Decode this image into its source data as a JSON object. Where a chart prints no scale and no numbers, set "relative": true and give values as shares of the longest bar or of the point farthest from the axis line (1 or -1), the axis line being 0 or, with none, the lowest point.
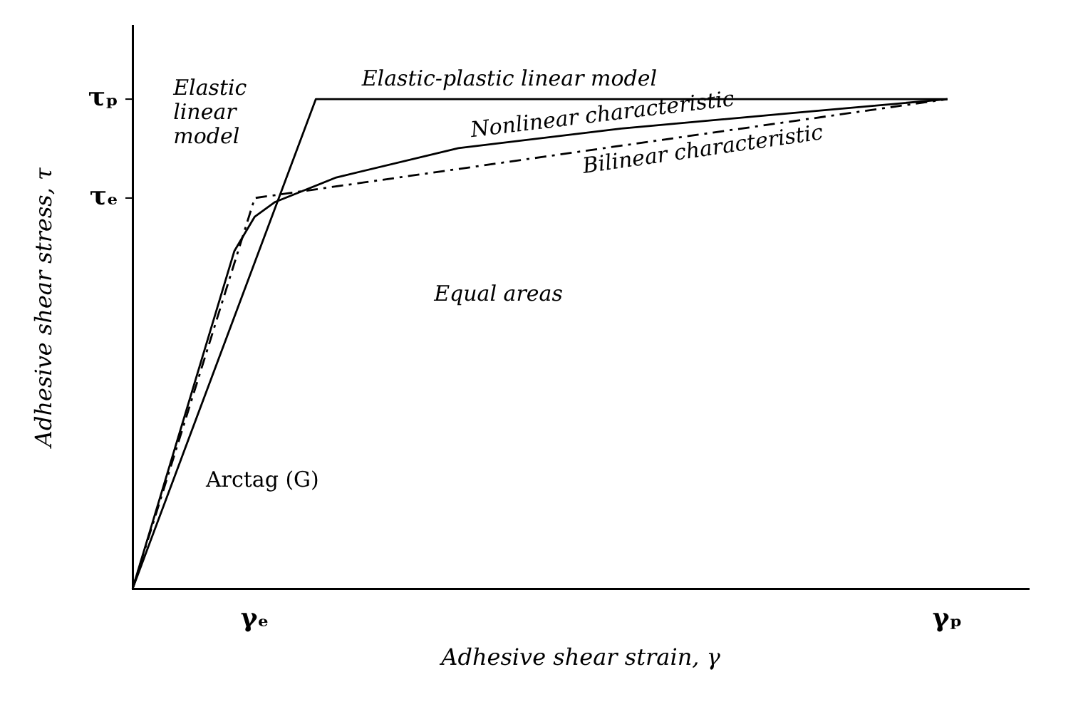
{
  "chart_data": {
    "type": "line",
    "relative": true,
    "xlabel": "Adhesive shear strain, γ",
    "ylabel": "Adhesive shear stress, τ",
    "grid": false,
    "legend": false,
    "marker": "none",
    "categories": [
      null,
      null,
      null,
      null,
      null,
      null,
      "γₑ",
      null,
      null,
      null,
      null,
      null,
      null,
      null,
      null,
      null,
      null,
      null,
      null,
      null,
      null,
      null,
      null,
      null,
      null,
      null,
      null,
      null,
      null,
      null,
      null,
      null,
      null,
      null,
      null,
      null,
      null,
      null,
      null,
      null,
      "γₚ",
      null,
      null,
      null,
      null
    ],
    "series": [
      {
        "name": "Elastic-plastic linear model",
        "color": "#000000",
        "values": [
          0,
          null,
          null,
          null,
          null,
          null,
          null,
          null,
          null,
          1,
          null,
          null,
          null,
          null,
          null,
          null,
          null,
          null,
          null,
          null,
          null,
          null,
          null,
          null,
          null,
          null,
          null,
          null,
          null,
          null,
          null,
          null,
          null,
          null,
          null,
          null,
          null,
          null,
          null,
          null,
          1,
          null,
          null,
          null,
          null
        ]
      },
      {
        "name": "Nonlinear characteristic",
        "color": "#000000",
        "values": [
          0,
          null,
          null,
          null,
          null,
          0.69,
          0.76,
          0.79,
          null,
          null,
          0.84,
          null,
          null,
          null,
          null,
          null,
          0.9,
          null,
          null,
          null,
          null,
          null,
          null,
          null,
          0.94,
          null,
          null,
          null,
          null,
          null,
          null,
          null,
          0.97,
          null,
          null,
          null,
          null,
          null,
          null,
          null,
          1,
          null,
          null,
          null,
          null
        ]
      },
      {
        "name": "Bilinear characteristic",
        "color": "#000000",
        "line_style": "dashed",
        "values": [
          0,
          null,
          null,
          null,
          null,
          null,
          0.798,
          null,
          null,
          null,
          null,
          null,
          null,
          null,
          null,
          null,
          null,
          null,
          null,
          null,
          null,
          null,
          null,
          null,
          null,
          null,
          null,
          null,
          null,
          null,
          null,
          null,
          null,
          null,
          null,
          null,
          null,
          null,
          null,
          null,
          1,
          null,
          null,
          null,
          null
        ]
      }
    ],
    "annotations": [
      "τₑ",
      "τₚ",
      "Elastic linear model",
      "Equal areas",
      "Arctag (G)"
    ]
  }
}
